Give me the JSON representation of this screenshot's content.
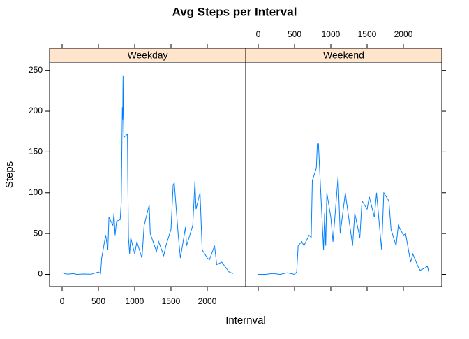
{
  "title": "Avg Steps per Interval",
  "xlabel": "Internval",
  "ylabel": "Steps",
  "chart_data": [
    {
      "type": "line",
      "panel": "Weekday",
      "color": "#0080ff",
      "x": [
        0,
        50,
        100,
        150,
        200,
        300,
        400,
        500,
        530,
        545,
        600,
        630,
        645,
        700,
        715,
        730,
        750,
        800,
        815,
        830,
        835,
        840,
        845,
        850,
        900,
        905,
        915,
        930,
        945,
        1000,
        1030,
        1100,
        1130,
        1200,
        1215,
        1300,
        1330,
        1400,
        1430,
        1500,
        1530,
        1545,
        1600,
        1630,
        1700,
        1715,
        1800,
        1830,
        1845,
        1900,
        1930,
        2000,
        2030,
        2100,
        2130,
        2200,
        2300,
        2355
      ],
      "values": [
        2,
        0.5,
        0.3,
        1,
        0,
        0.4,
        0.2,
        3,
        1,
        20,
        48,
        30,
        70,
        60,
        75,
        48,
        65,
        67,
        88,
        205,
        190,
        243,
        195,
        168,
        172,
        120,
        45,
        25,
        45,
        25,
        40,
        20,
        60,
        85,
        50,
        28,
        40,
        23,
        35,
        55,
        110,
        112,
        48,
        20,
        58,
        35,
        60,
        114,
        80,
        100,
        30,
        20,
        18,
        35,
        12,
        15,
        3,
        1
      ],
      "xlim": [
        -173,
        2529
      ],
      "ylim": [
        -15,
        260
      ],
      "xticks": [
        0,
        500,
        1000,
        1500,
        2000
      ],
      "yticks": [
        0,
        50,
        100,
        150,
        200,
        250
      ]
    },
    {
      "type": "line",
      "panel": "Weekend",
      "color": "#0080ff",
      "x": [
        0,
        100,
        200,
        300,
        400,
        500,
        530,
        550,
        600,
        630,
        700,
        730,
        745,
        800,
        815,
        830,
        845,
        900,
        915,
        930,
        945,
        1000,
        1030,
        1100,
        1130,
        1200,
        1230,
        1300,
        1330,
        1400,
        1430,
        1500,
        1530,
        1600,
        1630,
        1700,
        1730,
        1800,
        1830,
        1900,
        1930,
        2000,
        2030,
        2100,
        2130,
        2200,
        2230,
        2300,
        2330,
        2355
      ],
      "values": [
        0,
        0,
        1,
        0,
        2,
        0,
        3,
        35,
        40,
        35,
        48,
        45,
        115,
        130,
        160,
        160,
        130,
        30,
        75,
        35,
        100,
        70,
        40,
        120,
        50,
        100,
        80,
        35,
        75,
        45,
        90,
        80,
        95,
        70,
        100,
        30,
        100,
        90,
        55,
        35,
        60,
        48,
        50,
        15,
        25,
        10,
        5,
        8,
        10,
        1
      ],
      "xlim": [
        -173,
        2529
      ],
      "ylim": [
        -15,
        260
      ],
      "xticks": [
        0,
        500,
        1000,
        1500,
        2000
      ],
      "yticks": [
        0,
        50,
        100,
        150,
        200,
        250
      ]
    }
  ]
}
